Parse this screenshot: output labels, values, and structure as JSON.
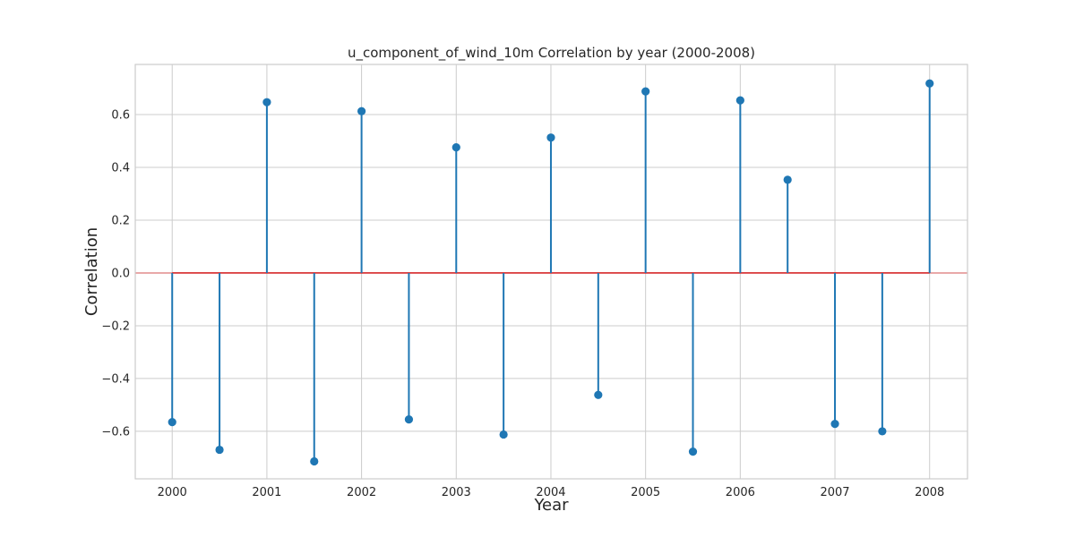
{
  "chart_data": {
    "type": "stem",
    "title": "u_component_of_wind_10m Correlation by year (2000-2008)",
    "xlabel": "Year",
    "ylabel": "Correlation",
    "x": [
      2000,
      2000.5,
      2001,
      2001.5,
      2002,
      2002.5,
      2003,
      2003.5,
      2004,
      2004.5,
      2005,
      2005.5,
      2006,
      2006.5,
      2007,
      2007.5,
      2008
    ],
    "values": [
      -0.565,
      -0.67,
      0.647,
      -0.714,
      0.613,
      -0.555,
      0.476,
      -0.612,
      0.513,
      -0.462,
      0.688,
      -0.677,
      0.654,
      0.353,
      -0.572,
      -0.6,
      0.718
    ],
    "xlim": [
      1999.61,
      2008.4
    ],
    "ylim": [
      -0.78,
      0.79
    ],
    "xticks": [
      2000,
      2001,
      2002,
      2003,
      2004,
      2005,
      2006,
      2007,
      2008
    ],
    "xtick_labels": [
      "2000",
      "2001",
      "2002",
      "2003",
      "2004",
      "2005",
      "2006",
      "2007",
      "2008"
    ],
    "yticks": [
      -0.6,
      -0.4,
      -0.2,
      0.0,
      0.2,
      0.4,
      0.6
    ],
    "ytick_labels": [
      "−0.6",
      "−0.4",
      "−0.2",
      "0.0",
      "0.2",
      "0.4",
      "0.6"
    ],
    "baseline": 0,
    "grid": true,
    "colors": {
      "stem": "#1f77b4",
      "marker": "#1f77b4",
      "baseline": "#d62728",
      "grid": "#cccccc",
      "spine": "#cccccc"
    }
  }
}
